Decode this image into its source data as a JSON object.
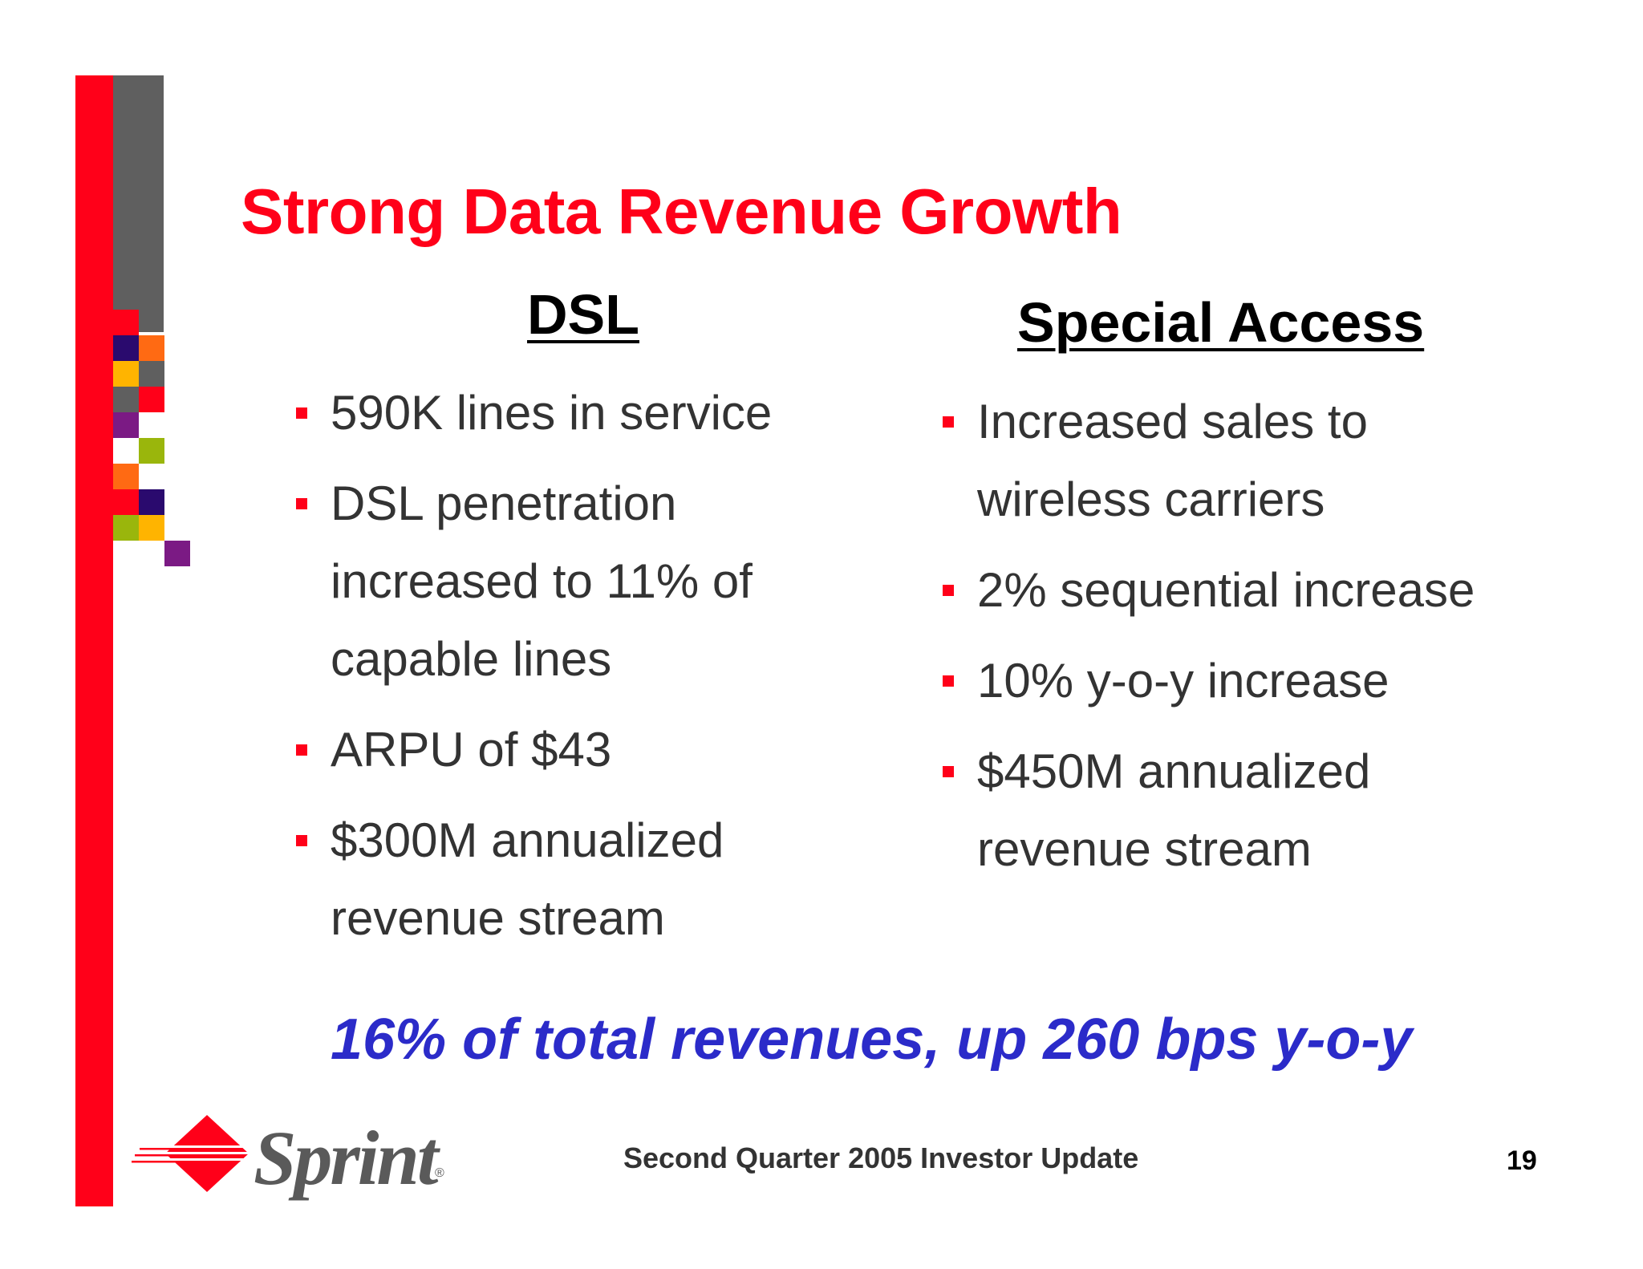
{
  "slide": {
    "title": "Strong Data Revenue Growth",
    "tagline": "16% of total revenues, up 260 bps y-o-y",
    "footer": "Second Quarter 2005 Investor Update",
    "page_number": "19"
  },
  "dsl": {
    "heading": "DSL",
    "bullets": [
      "590K lines in service",
      "DSL penetration increased to 11% of capable lines",
      "ARPU of $43",
      "$300M annualized revenue stream"
    ]
  },
  "special_access": {
    "heading": "Special Access",
    "bullets": [
      "Increased sales to wireless carriers",
      "2% sequential increase",
      "10% y-o-y increase",
      "$450M annualized revenue stream"
    ]
  },
  "logo": {
    "text": "Sprint",
    "registered": "®"
  },
  "colors": {
    "accent_red": "#ff0019",
    "tagline_blue": "#2b2bc9",
    "bar_gray": "#5f5f5f"
  }
}
